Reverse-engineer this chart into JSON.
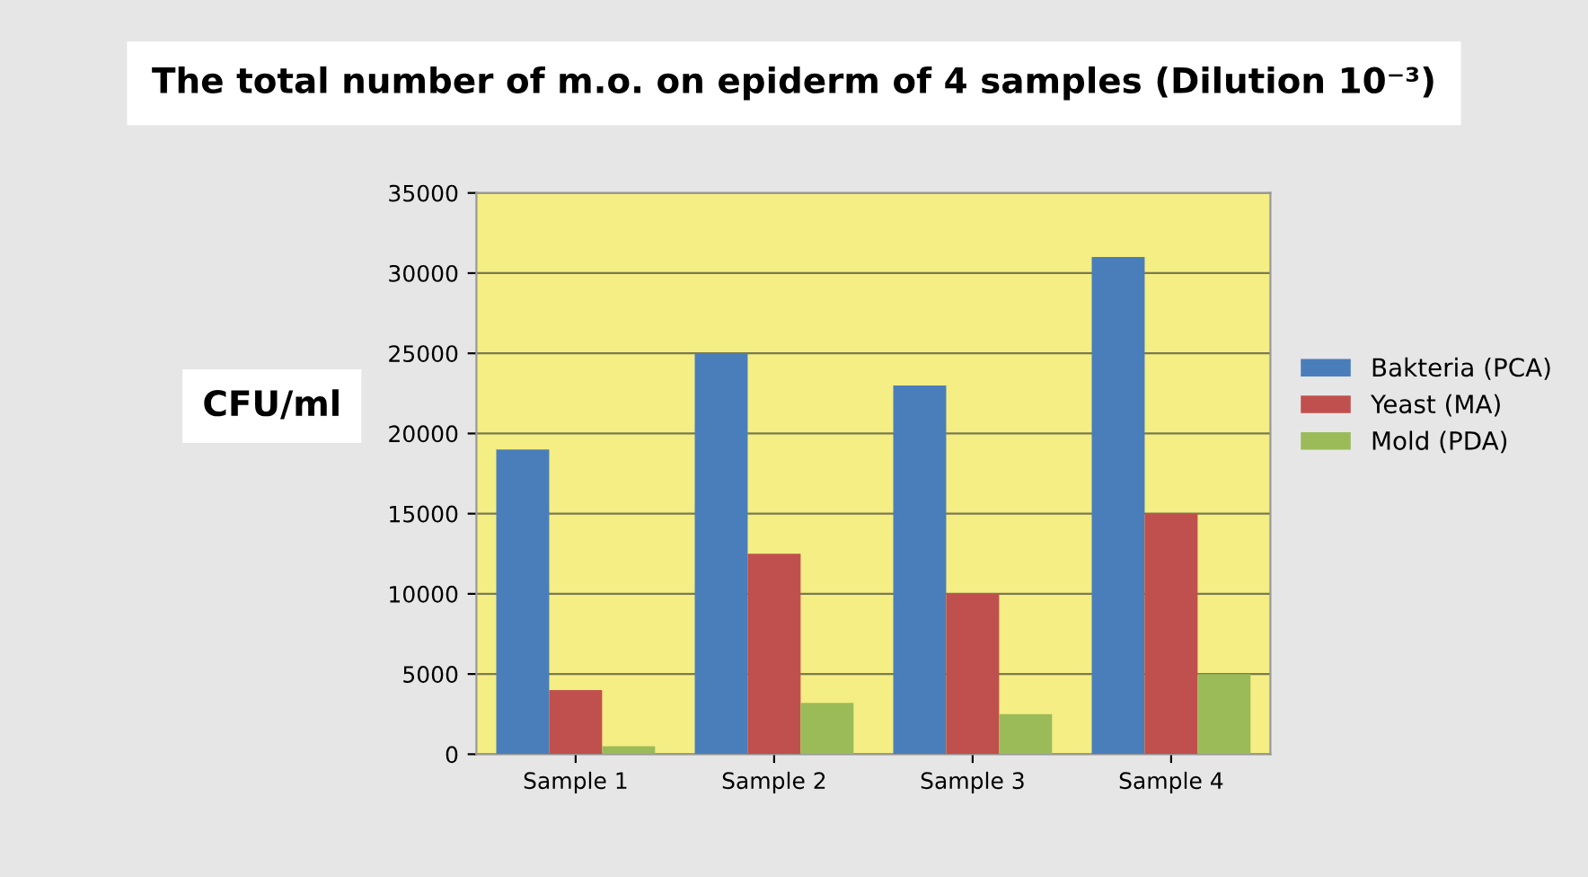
{
  "chart_data": {
    "type": "bar",
    "title": "The total number of m.o. on epiderm of 4 samples (Dilution 10⁻³)",
    "ylabel": "CFU/ml",
    "categories": [
      "Sample 1",
      "Sample 2",
      "Sample 3",
      "Sample 4"
    ],
    "series": [
      {
        "name": "Bakteria (PCA)",
        "color": "#4a7ebb",
        "values": [
          19000,
          25000,
          23000,
          31000
        ]
      },
      {
        "name": "Yeast (MA)",
        "color": "#c0504d",
        "values": [
          4000,
          12500,
          10000,
          15000
        ]
      },
      {
        "name": "Mold (PDA)",
        "color": "#9bbb59",
        "values": [
          500,
          3200,
          2500,
          5000
        ]
      }
    ],
    "ylim": [
      0,
      35000
    ],
    "yticks": [
      0,
      5000,
      10000,
      15000,
      20000,
      25000,
      30000,
      35000
    ],
    "grid": "y",
    "legend": "right"
  }
}
